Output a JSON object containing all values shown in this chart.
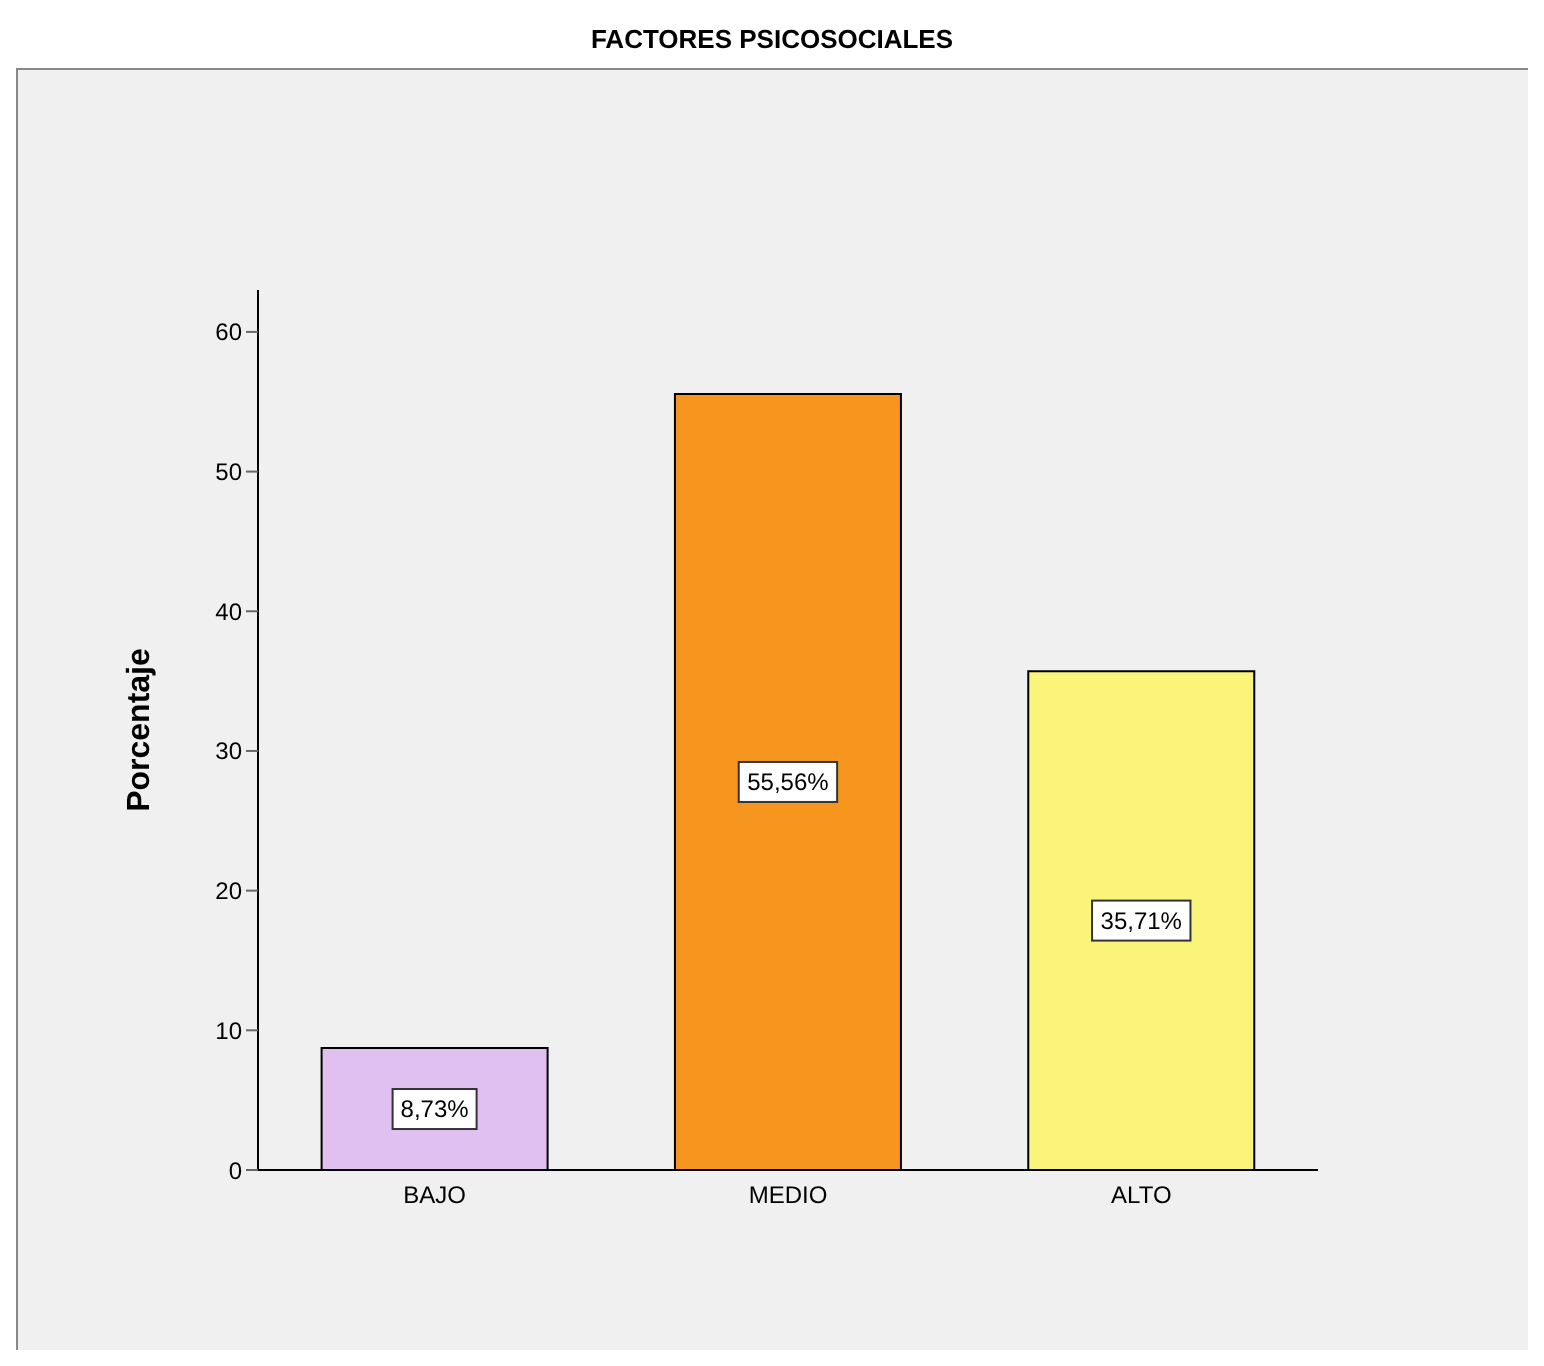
{
  "chart_data": {
    "type": "bar",
    "title": "FACTORES PSICOSOCIALES",
    "ylabel": "Porcentaje",
    "categories": [
      "BAJO",
      "MEDIO",
      "ALTO"
    ],
    "values": [
      8.73,
      55.56,
      35.71
    ],
    "colors": [
      "#e0c0f0",
      "#f7961e",
      "#faf57a"
    ],
    "value_labels": [
      "8,73%",
      "55,56%",
      "35,71%"
    ],
    "ylim": [
      0,
      63
    ],
    "yticks": [
      0,
      10,
      20,
      30,
      40,
      50,
      60
    ],
    "grid": false,
    "legend": false
  }
}
